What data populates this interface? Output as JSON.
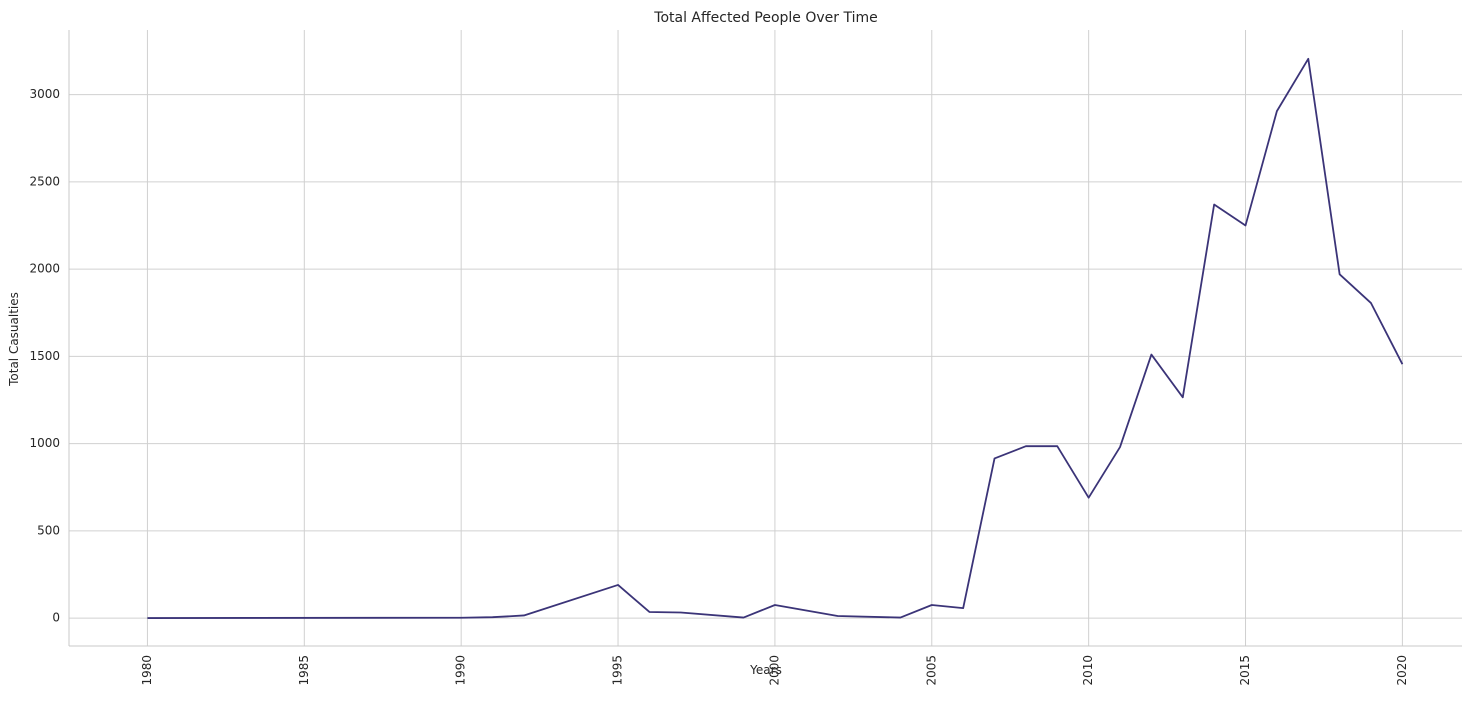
{
  "chart_data": {
    "type": "line",
    "title": "Total Affected People Over Time",
    "xlabel": "Years",
    "ylabel": "Total Casualties",
    "xlim": [
      1977.5,
      2021.9
    ],
    "ylim": [
      -160,
      3370
    ],
    "x_ticks": [
      1980,
      1985,
      1990,
      1995,
      2000,
      2005,
      2010,
      2015,
      2020
    ],
    "y_ticks": [
      0,
      500,
      1000,
      1500,
      2000,
      2500,
      3000
    ],
    "x_tick_rotation": "vertical",
    "grid": true,
    "legend": "none",
    "series": [
      {
        "color": "#3b3478",
        "points": [
          [
            1980,
            0
          ],
          [
            1990,
            2
          ],
          [
            1991,
            5
          ],
          [
            1992,
            15
          ],
          [
            1995,
            190
          ],
          [
            1996,
            35
          ],
          [
            1997,
            32
          ],
          [
            1999,
            3
          ],
          [
            2000,
            75
          ],
          [
            2002,
            12
          ],
          [
            2004,
            3
          ],
          [
            2005,
            75
          ],
          [
            2006,
            57
          ],
          [
            2007,
            915
          ],
          [
            2008,
            985
          ],
          [
            2009,
            985
          ],
          [
            2010,
            690
          ],
          [
            2011,
            980
          ],
          [
            2012,
            1510
          ],
          [
            2013,
            1265
          ],
          [
            2014,
            2370
          ],
          [
            2015,
            2250
          ],
          [
            2016,
            2905
          ],
          [
            2017,
            3205
          ],
          [
            2018,
            1970
          ],
          [
            2019,
            1805
          ],
          [
            2020,
            1455
          ]
        ]
      }
    ]
  },
  "colors": {
    "grid": "#d0d0d0",
    "spine": "#c8c8c8",
    "text": "#262626",
    "line": "#3b3478"
  }
}
